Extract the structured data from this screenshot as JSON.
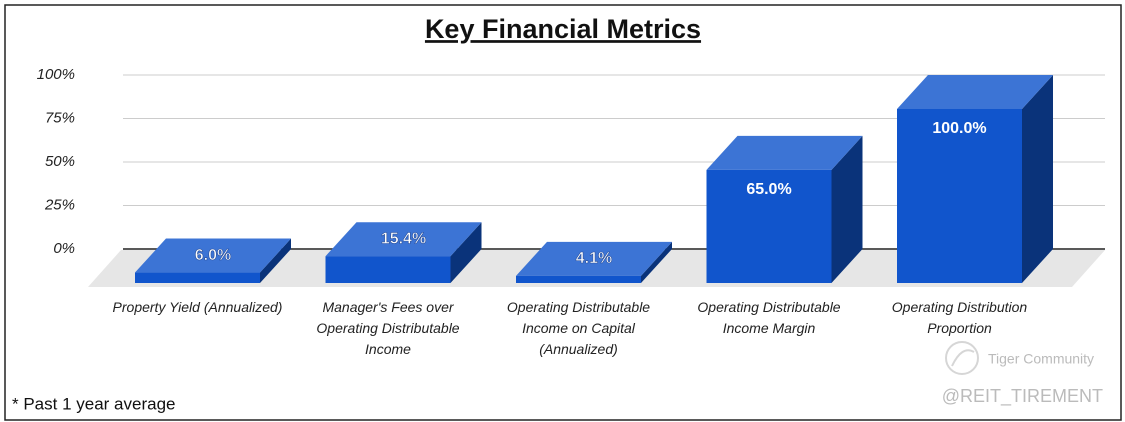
{
  "chart_data": {
    "type": "bar3d",
    "title": "Key Financial Metrics",
    "categories": [
      "Property Yield (Annualized)",
      "Manager's Fees over Operating Distributable Income",
      "Operating Distributable Income on Capital (Annualized)",
      "Operating Distributable Income Margin",
      "Operating Distribution Proportion"
    ],
    "values": [
      6.0,
      15.4,
      4.1,
      65.0,
      100.0
    ],
    "value_labels": [
      "6.0%",
      "15.4%",
      "4.1%",
      "65.0%",
      "100.0%"
    ],
    "color": "#1155cc",
    "ylim": [
      0,
      100
    ],
    "yticks": [
      {
        "value": 0,
        "label": "0%"
      },
      {
        "value": 25,
        "label": "25%"
      },
      {
        "value": 50,
        "label": "50%"
      },
      {
        "value": 75,
        "label": "75%"
      },
      {
        "value": 100,
        "label": "100%"
      }
    ],
    "grid": true
  },
  "footnote": "* Past 1 year average",
  "watermark": {
    "brand": "Tiger Community",
    "handle": "@REIT_TIREMENT"
  }
}
